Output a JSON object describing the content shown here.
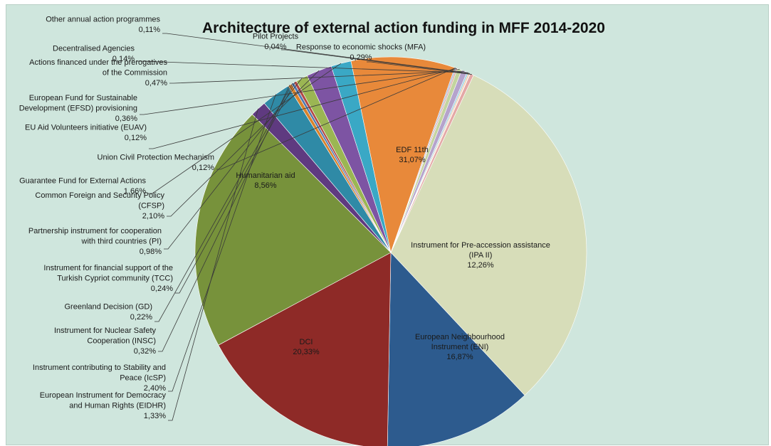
{
  "chart_data": {
    "type": "pie",
    "title": "Architecture of external action funding in MFF 2014-2020",
    "slices": [
      {
        "label": [
          "EDF 11th"
        ],
        "value": 31.07,
        "display": "31,07%",
        "color": "#d7ddb9"
      },
      {
        "label": [
          "Instrument for Pre-accession assistance",
          "(IPA II)"
        ],
        "value": 12.26,
        "display": "12,26%",
        "color": "#2d5b8e"
      },
      {
        "label": [
          "European Neighbourhood",
          "Instrument (ENI)"
        ],
        "value": 16.87,
        "display": "16,87%",
        "color": "#8e2a27"
      },
      {
        "label": [
          "DCI"
        ],
        "value": 20.33,
        "display": "20,33%",
        "color": "#77923b"
      },
      {
        "label": [
          "European Instrument for Democracy",
          "and Human Rights (EIDHR)"
        ],
        "value": 1.33,
        "display": "1,33%",
        "color": "#5f3a80"
      },
      {
        "label": [
          "Instrument contributing to Stability and",
          "Peace (IcSP)"
        ],
        "value": 2.4,
        "display": "2,40%",
        "color": "#2f8aa6"
      },
      {
        "label": [
          "Instrument for Nuclear Safety",
          "Cooperation (INSC)"
        ],
        "value": 0.32,
        "display": "0,32%",
        "color": "#d9832c"
      },
      {
        "label": [
          "Greenland Decision (GD)"
        ],
        "value": 0.22,
        "display": "0,22%",
        "color": "#4f79b0"
      },
      {
        "label": [
          "Instrument for financial support of the",
          "Turkish Cypriot community (TCC)"
        ],
        "value": 0.24,
        "display": "0,24%",
        "color": "#b24a46"
      },
      {
        "label": [
          "Partnership instrument for cooperation",
          "with third countries (PI)"
        ],
        "value": 0.98,
        "display": "0,98%",
        "color": "#9bb653"
      },
      {
        "label": [
          "Common Foreign and Security Policy",
          "(CFSP)"
        ],
        "value": 2.1,
        "display": "2,10%",
        "color": "#7d54a3"
      },
      {
        "label": [
          "Guarantee Fund for External Actions"
        ],
        "value": 1.66,
        "display": "1,66%",
        "color": "#3aa8c5"
      },
      {
        "label": [
          "Humanitarian aid"
        ],
        "value": 8.56,
        "display": "8,56%",
        "color": "#e8893a"
      },
      {
        "label": [
          "Union Civil Protection Mechanism"
        ],
        "value": 0.12,
        "display": "0,12%",
        "color": "#a3b8d8"
      },
      {
        "label": [
          "EU Aid Volunteers initiative (EUAV)"
        ],
        "value": 0.12,
        "display": "0,12%",
        "color": "#d8a3a1"
      },
      {
        "label": [
          "European Fund for Sustainable",
          "Development (EFSD)  provisioning"
        ],
        "value": 0.36,
        "display": "0,36%",
        "color": "#c3d49e"
      },
      {
        "label": [
          "Actions financed under the prerogatives",
          "of the Commission"
        ],
        "value": 0.47,
        "display": "0,47%",
        "color": "#b5a3cc"
      },
      {
        "label": [
          "Decentralised Agencies"
        ],
        "value": 0.14,
        "display": "0,14%",
        "color": "#9fd3e2"
      },
      {
        "label": [
          "Other annual action programmes"
        ],
        "value": 0.11,
        "display": "0,11%",
        "color": "#f2bf92"
      },
      {
        "label": [
          "Pilot Projects"
        ],
        "value": 0.04,
        "display": "0,04%",
        "color": "#7fa0cc"
      },
      {
        "label": [
          "Response to economic shocks (MFA)"
        ],
        "value": 0.29,
        "display": "0,29%",
        "color": "#e4a8a6"
      }
    ]
  }
}
